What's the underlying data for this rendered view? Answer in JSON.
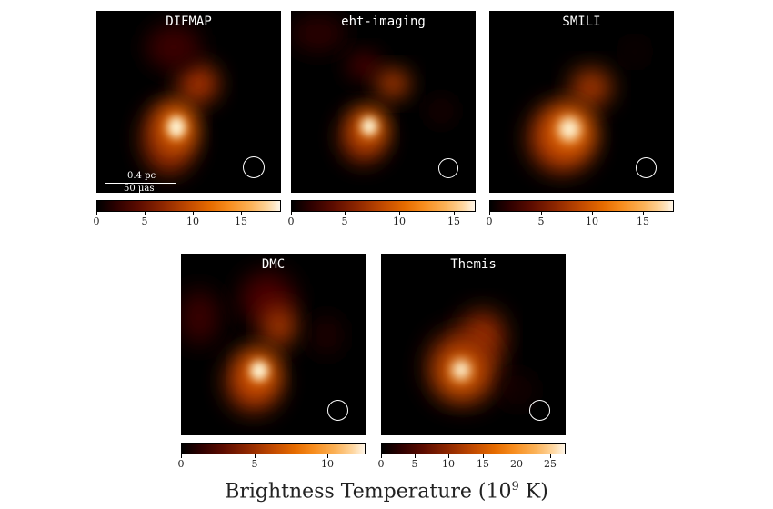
{
  "panels": [
    {
      "title": "DIFMAP",
      "ticks": [
        "0",
        "5",
        "10",
        "15"
      ]
    },
    {
      "title": "eht-imaging",
      "ticks": [
        "0",
        "5",
        "10",
        "15"
      ]
    },
    {
      "title": "SMILI",
      "ticks": [
        "0",
        "5",
        "10",
        "15"
      ]
    },
    {
      "title": "DMC",
      "ticks": [
        "0",
        "5",
        "10"
      ]
    },
    {
      "title": "Themis",
      "ticks": [
        "0",
        "5",
        "10",
        "15",
        "20",
        "25"
      ]
    }
  ],
  "scalebar": {
    "top": "0.4 pc",
    "bottom": "50 μas"
  },
  "axis": {
    "label_main": "Brightness Temperature (10",
    "label_exp": "9",
    "label_end": " K)"
  }
}
